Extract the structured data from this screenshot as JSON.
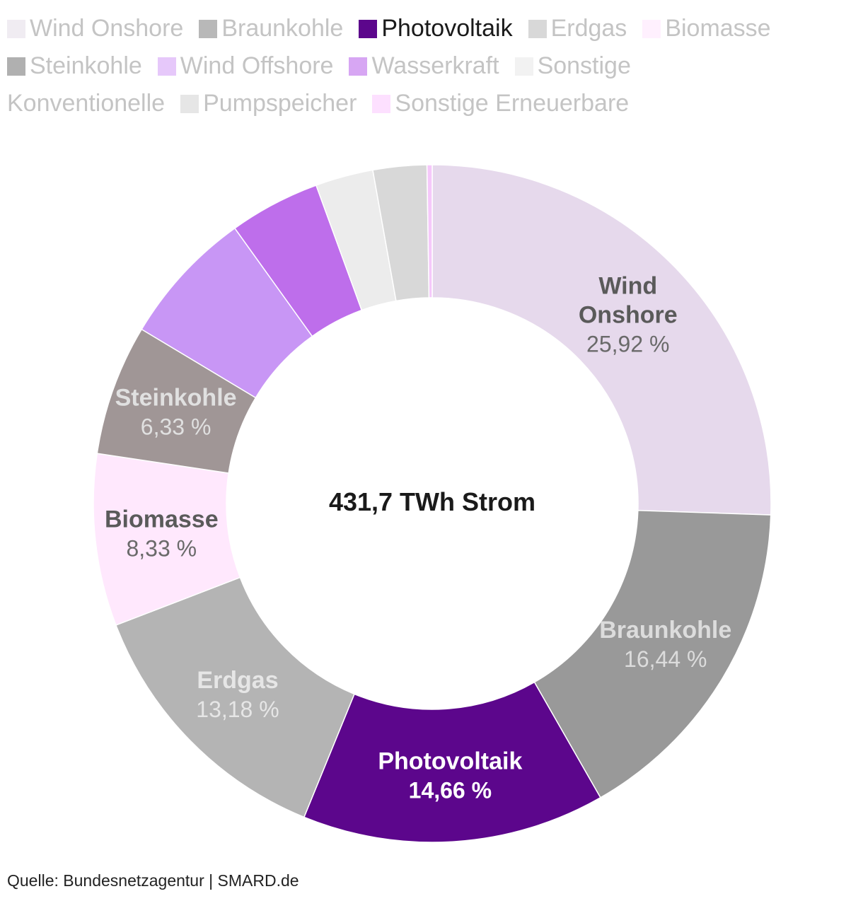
{
  "chart_data": {
    "type": "pie",
    "center_label": "431,7 TWh Strom",
    "legend_placement": "top",
    "active_series": "Photovoltaik",
    "slices": [
      {
        "name": "Wind Onshore",
        "value": 25.92,
        "display_value": "25,92 %",
        "color": "#e6d9ec",
        "label_lines": [
          "Wind",
          "Onshore"
        ],
        "label_color": "#5a5a5a",
        "value_color": "#6a6a6a"
      },
      {
        "name": "Braunkohle",
        "value": 16.44,
        "display_value": "16,44 %",
        "color": "#999999",
        "label_lines": [
          "Braunkohle"
        ],
        "label_color": "#dcdcdc",
        "value_color": "#dcdcdc"
      },
      {
        "name": "Photovoltaik",
        "value": 14.66,
        "display_value": "14,66 %",
        "color": "#5c068c",
        "label_lines": [
          "Photovoltaik"
        ],
        "label_color": "#ffffff",
        "value_color": "#ffffff"
      },
      {
        "name": "Erdgas",
        "value": 13.18,
        "display_value": "13,18 %",
        "color": "#b4b4b4",
        "label_lines": [
          "Erdgas"
        ],
        "label_color": "#e6e6e6",
        "value_color": "#e6e6e6"
      },
      {
        "name": "Biomasse",
        "value": 8.33,
        "display_value": "8,33 %",
        "color": "#ffe8fd",
        "label_lines": [
          "Biomasse"
        ],
        "label_color": "#5a5a5a",
        "value_color": "#6a6a6a"
      },
      {
        "name": "Steinkohle",
        "value": 6.33,
        "display_value": "6,33 %",
        "color": "#a09696",
        "label_lines": [
          "Steinkohle"
        ],
        "label_color": "#e0e0e0",
        "value_color": "#e0e0e0"
      },
      {
        "name": "Wind Offshore",
        "value": 6.6,
        "display_value": "",
        "color": "#c896f5",
        "label_lines": [],
        "label_color": "",
        "value_color": ""
      },
      {
        "name": "Wasserkraft",
        "value": 4.4,
        "display_value": "",
        "color": "#be6eeb",
        "label_lines": [],
        "label_color": "",
        "value_color": ""
      },
      {
        "name": "Sonstige Konventionelle",
        "value": 2.8,
        "display_value": "",
        "color": "#ececec",
        "label_lines": [],
        "label_color": "",
        "value_color": ""
      },
      {
        "name": "Pumpspeicher",
        "value": 2.6,
        "display_value": "",
        "color": "#d8d8d8",
        "label_lines": [],
        "label_color": "",
        "value_color": ""
      },
      {
        "name": "Sonstige Erneuerbare",
        "value": 0.25,
        "display_value": "",
        "color": "#f5c8fa",
        "label_lines": [],
        "label_color": "",
        "value_color": ""
      }
    ],
    "legend": [
      {
        "name": "Wind Onshore",
        "color": "#f0ecf2"
      },
      {
        "name": "Braunkohle",
        "color": "#b8b8b8"
      },
      {
        "name": "Photovoltaik",
        "color": "#5c068c"
      },
      {
        "name": "Erdgas",
        "color": "#d8d8d8"
      },
      {
        "name": "Biomasse",
        "color": "#fff0fe"
      },
      {
        "name": "Steinkohle",
        "color": "#b0b0b0"
      },
      {
        "name": "Wind Offshore",
        "color": "#e6c8fa"
      },
      {
        "name": "Wasserkraft",
        "color": "#d7a6f3"
      },
      {
        "name": "Sonstige Konventionelle",
        "color": "#f2f2f2"
      },
      {
        "name": "Pumpspeicher",
        "color": "#e6e6e6"
      },
      {
        "name": "Sonstige Erneuerbare",
        "color": "#fde0ff"
      }
    ]
  },
  "footer": {
    "source": "Quelle: Bundesnetzagentur | SMARD.de"
  }
}
